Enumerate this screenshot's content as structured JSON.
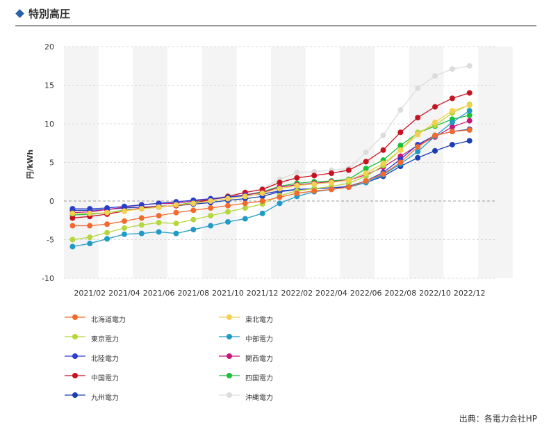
{
  "header": {
    "title": "特別高圧"
  },
  "source": "出典：各電力会社HP",
  "chart_data": {
    "type": "line",
    "title": "",
    "xlabel": "",
    "ylabel": "円/kWh",
    "ylim": [
      -10,
      20
    ],
    "yticks": [
      -10,
      -5,
      0,
      5,
      10,
      15,
      20
    ],
    "grid": true,
    "legend_position": "bottom",
    "x": [
      "2021/01",
      "2021/02",
      "2021/03",
      "2021/04",
      "2021/05",
      "2021/06",
      "2021/07",
      "2021/08",
      "2021/09",
      "2021/10",
      "2021/11",
      "2021/12",
      "2022/01",
      "2022/02",
      "2022/03",
      "2022/04",
      "2022/05",
      "2022/06",
      "2022/07",
      "2022/08",
      "2022/09",
      "2022/10",
      "2022/11",
      "2022/12",
      "2023/01"
    ],
    "xtick_labels": [
      "2021/02",
      "2021/04",
      "2021/06",
      "2021/08",
      "2021/10",
      "2021/12",
      "2022/02",
      "2022/04",
      "2022/06",
      "2022/08",
      "2022/10",
      "2022/12"
    ],
    "series": [
      {
        "name": "北海道電力",
        "color": "#f26a2e",
        "values": [
          -3.2,
          -3.2,
          -3.0,
          -2.6,
          -2.2,
          -1.9,
          -1.5,
          -1.2,
          -0.9,
          -0.6,
          -0.3,
          0.0,
          0.5,
          1.0,
          1.3,
          1.5,
          1.8,
          2.6,
          3.5,
          5.0,
          7.0,
          8.5,
          9.0,
          9.2,
          null
        ]
      },
      {
        "name": "東北電力",
        "color": "#f2d14e",
        "values": [
          -1.6,
          -1.6,
          -1.5,
          -1.3,
          -1.0,
          -0.8,
          -0.5,
          -0.3,
          0.0,
          0.3,
          0.6,
          1.0,
          1.6,
          2.0,
          2.2,
          2.4,
          2.7,
          3.6,
          4.9,
          6.6,
          8.6,
          10.2,
          11.7,
          12.4,
          null
        ]
      },
      {
        "name": "東京電力",
        "color": "#b5d63d",
        "values": [
          -5.0,
          -4.7,
          -4.1,
          -3.5,
          -3.1,
          -2.8,
          -2.9,
          -2.4,
          -1.9,
          -1.4,
          -0.9,
          -0.4,
          0.7,
          1.3,
          1.6,
          1.9,
          2.3,
          3.2,
          4.6,
          6.6,
          8.9,
          9.8,
          11.4,
          12.5,
          null
        ]
      },
      {
        "name": "中部電力",
        "color": "#1f9bc6",
        "values": [
          -5.9,
          -5.5,
          -4.9,
          -4.3,
          -4.2,
          -4.0,
          -4.2,
          -3.7,
          -3.2,
          -2.7,
          -2.3,
          -1.6,
          -0.3,
          0.6,
          1.2,
          1.5,
          1.8,
          2.4,
          3.4,
          4.8,
          6.4,
          8.4,
          10.2,
          11.7,
          null
        ]
      },
      {
        "name": "北陸電力",
        "color": "#2a3ec9",
        "values": [
          -1.0,
          -1.0,
          -0.9,
          -0.7,
          -0.5,
          -0.3,
          -0.1,
          0.1,
          0.3,
          0.5,
          0.7,
          0.9,
          1.3,
          1.5,
          1.6,
          1.7,
          1.9,
          2.6,
          3.7,
          5.4,
          7.3,
          8.5,
          9.0,
          9.3,
          null
        ]
      },
      {
        "name": "関西電力",
        "color": "#c8177a",
        "values": [
          -1.5,
          -1.4,
          -1.1,
          -0.8,
          -0.5,
          -0.3,
          -0.3,
          0.0,
          0.2,
          0.5,
          0.8,
          1.1,
          1.8,
          2.1,
          2.3,
          2.5,
          2.7,
          3.4,
          4.4,
          5.8,
          7.2,
          8.3,
          9.6,
          10.4,
          null
        ]
      },
      {
        "name": "中国電力",
        "color": "#c7121f",
        "values": [
          -2.2,
          -2.0,
          -1.7,
          -1.3,
          -0.9,
          -0.7,
          -0.6,
          -0.3,
          0.2,
          0.6,
          1.1,
          1.5,
          2.4,
          3.0,
          3.3,
          3.6,
          4.0,
          5.1,
          6.6,
          8.9,
          10.8,
          12.2,
          13.3,
          14.0,
          null
        ]
      },
      {
        "name": "四国電力",
        "color": "#1cbf3a",
        "values": [
          -1.8,
          -1.7,
          -1.5,
          -1.2,
          -1.0,
          -0.8,
          -0.5,
          -0.2,
          0.2,
          0.5,
          0.8,
          1.2,
          1.9,
          2.3,
          2.5,
          2.6,
          2.8,
          4.2,
          5.3,
          7.2,
          8.8,
          9.7,
          10.6,
          11.1,
          null
        ]
      },
      {
        "name": "九州電力",
        "color": "#1b3fb3",
        "values": [
          -1.2,
          -1.2,
          -1.1,
          -0.9,
          -0.8,
          -0.7,
          -0.6,
          -0.4,
          -0.2,
          0.1,
          0.3,
          0.6,
          1.2,
          1.5,
          1.6,
          1.7,
          1.8,
          2.4,
          3.2,
          4.5,
          5.6,
          6.5,
          7.3,
          7.8,
          null
        ]
      },
      {
        "name": "沖縄電力",
        "color": "#dcdcdc",
        "values": [
          -2.0,
          -1.8,
          -1.5,
          -1.2,
          -0.9,
          -0.6,
          -0.3,
          0.0,
          0.3,
          0.7,
          1.1,
          1.6,
          2.8,
          3.7,
          3.8,
          4.0,
          4.2,
          6.3,
          8.5,
          11.8,
          14.6,
          16.2,
          17.1,
          17.5,
          null
        ]
      }
    ]
  }
}
